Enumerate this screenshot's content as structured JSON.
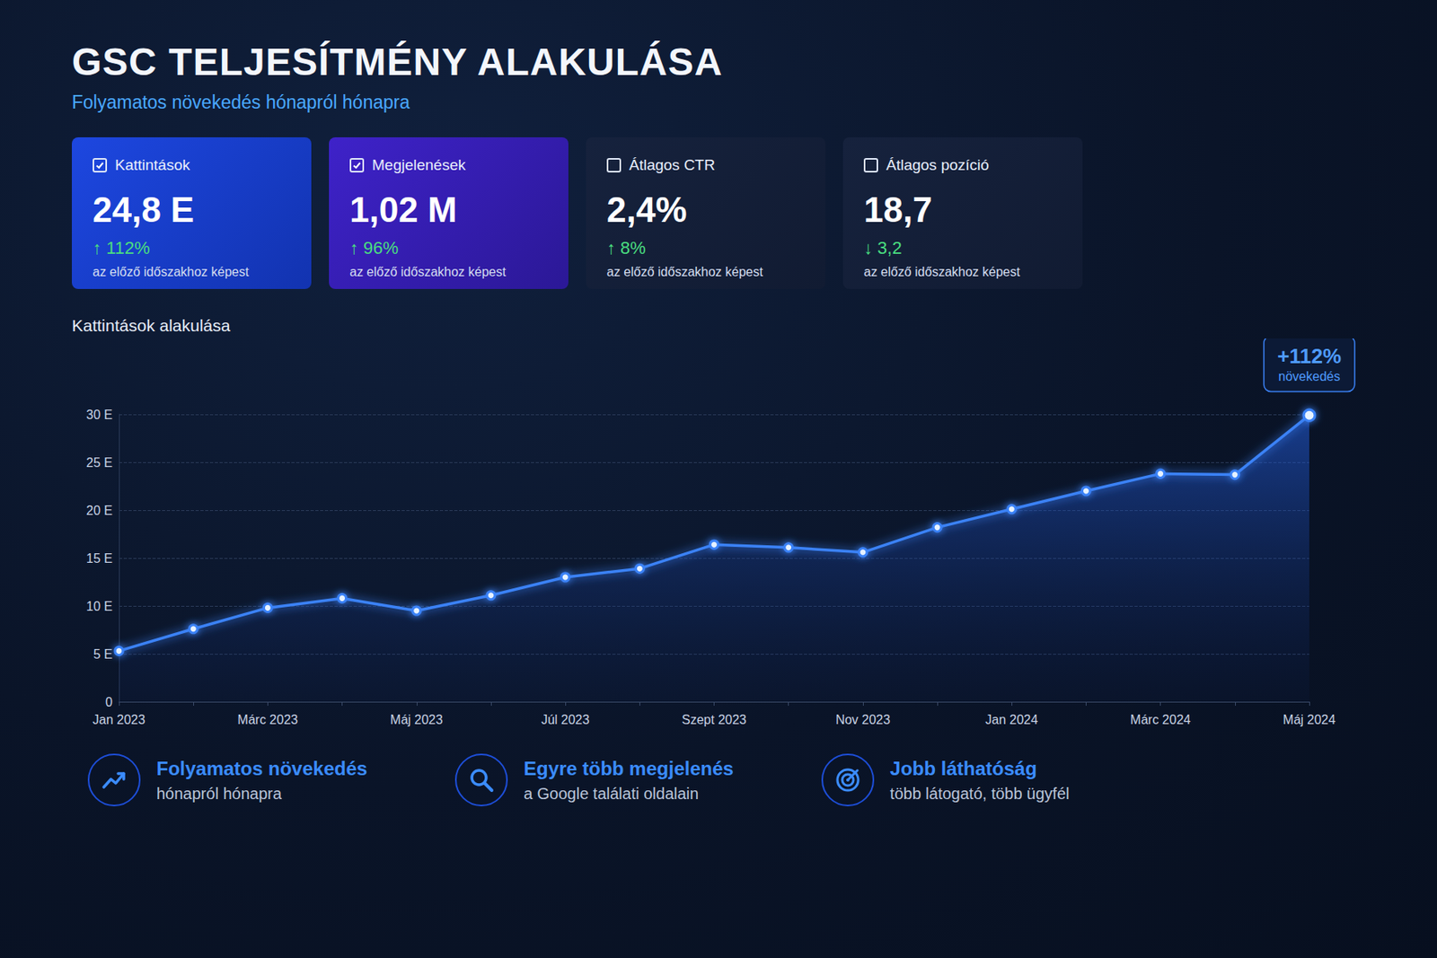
{
  "header": {
    "title": "GSC TELJESÍTMÉNY ALAKULÁSA",
    "subtitle": "Folyamatos növekedés hónapról hónapra"
  },
  "cards": [
    {
      "label": "Kattintások",
      "checked": true,
      "value": "24,8 E",
      "delta": "↑ 112%",
      "note": "az előző időszakhoz képest"
    },
    {
      "label": "Megjelenések",
      "checked": true,
      "value": "1,02 M",
      "delta": "↑ 96%",
      "note": "az előző időszakhoz képest"
    },
    {
      "label": "Átlagos CTR",
      "checked": false,
      "value": "2,4%",
      "delta": "↑ 8%",
      "note": "az előző időszakhoz képest"
    },
    {
      "label": "Átlagos pozíció",
      "checked": false,
      "value": "18,7",
      "delta": "↓ 3,2",
      "note": "az előző időszakhoz képest"
    }
  ],
  "chart_data": {
    "type": "line",
    "title": "Kattintások alakulása",
    "categories": [
      "Jan 2023",
      null,
      "Márc 2023",
      null,
      "Máj 2023",
      null,
      "Júl 2023",
      null,
      "Szept 2023",
      null,
      "Nov 2023",
      null,
      "Jan 2024",
      null,
      "Márc 2024",
      null,
      "Máj 2024"
    ],
    "values": [
      5.3,
      7.6,
      9.8,
      10.8,
      9.5,
      11.1,
      13.0,
      13.9,
      16.4,
      16.1,
      15.6,
      18.2,
      20.1,
      22.0,
      23.8,
      23.7,
      29.9
    ],
    "color": "#3b82f6",
    "ylim": [
      0,
      30
    ],
    "yticks": [
      0,
      {
        "value": 5,
        "label": "5 E"
      },
      {
        "value": 10,
        "label": "10 E"
      },
      {
        "value": 15,
        "label": "15 E"
      },
      {
        "value": 20,
        "label": "20 E"
      },
      {
        "value": 25,
        "label": "25 E"
      },
      {
        "value": 30,
        "label": "30 E"
      }
    ],
    "grid": true,
    "annotation": {
      "title": "+112%",
      "text": "növekedés"
    }
  },
  "features": [
    {
      "title": "Folyamatos növekedés",
      "text": "hónapról hónapra"
    },
    {
      "title": "Egyre több megjelenés",
      "text": "a Google találati oldalain"
    },
    {
      "title": "Jobb láthatóság",
      "text": "több látogató, több ügyfél"
    }
  ]
}
